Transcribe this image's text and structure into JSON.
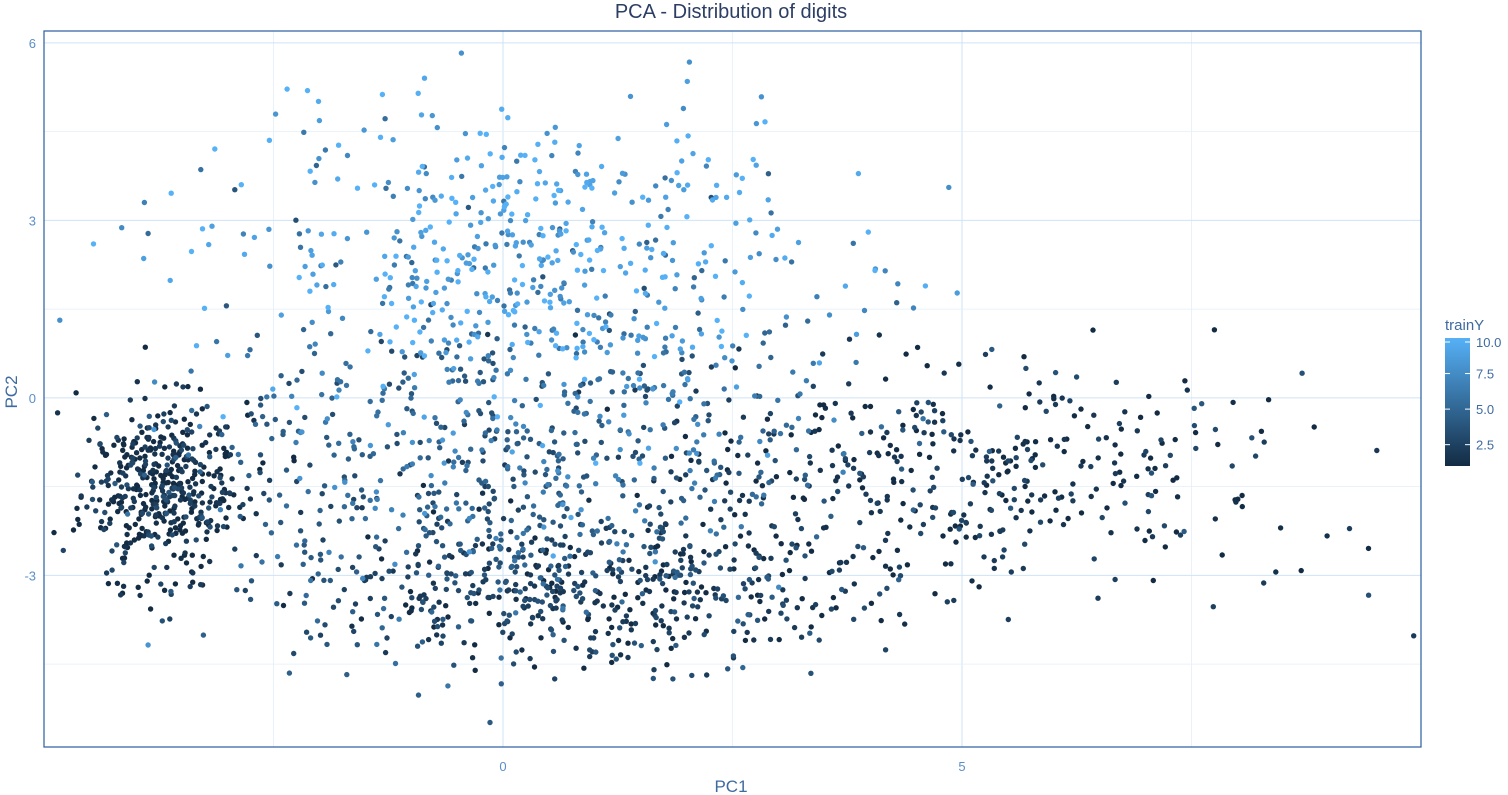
{
  "chart_data": {
    "type": "scatter",
    "title": "PCA - Distribution of digits",
    "xlabel": "PC1",
    "ylabel": "PC2",
    "xlim": [
      -5,
      10
    ],
    "ylim": [
      -5.9,
      6.2
    ],
    "x_ticks": [
      0,
      5
    ],
    "x_tick_labels": [
      "0",
      "5"
    ],
    "y_ticks": [
      -3,
      0,
      3,
      6
    ],
    "y_tick_labels": [
      "-3",
      "0",
      "3",
      "6"
    ],
    "grid": true,
    "legend": {
      "title": "trainY",
      "placement": "right",
      "scale": "continuous",
      "range": [
        1,
        10
      ],
      "breaks": [
        2.5,
        5.0,
        7.5,
        10.0
      ],
      "break_labels": [
        "2.5",
        "5.0",
        "7.5",
        "10.0"
      ],
      "color_low": "#132B43",
      "color_high": "#56B1F7"
    },
    "clusters": [
      {
        "center": [
          -3.7,
          -1.6
        ],
        "spread": [
          0.45,
          0.75
        ],
        "color_value": 1.3
      },
      {
        "center": [
          0.2,
          2.3
        ],
        "spread": [
          1.6,
          1.3
        ],
        "color_value": 9.2
      },
      {
        "center": [
          0.5,
          0.0
        ],
        "spread": [
          1.8,
          1.8
        ],
        "color_value": 6.0
      },
      {
        "center": [
          -0.3,
          -1.8
        ],
        "spread": [
          1.7,
          1.2
        ],
        "color_value": 3.8
      },
      {
        "center": [
          4.8,
          -1.3
        ],
        "spread": [
          2.0,
          0.9
        ],
        "color_value": 1.6
      },
      {
        "center": [
          1.0,
          -3.3
        ],
        "spread": [
          1.5,
          0.6
        ],
        "color_value": 2.2
      }
    ]
  }
}
